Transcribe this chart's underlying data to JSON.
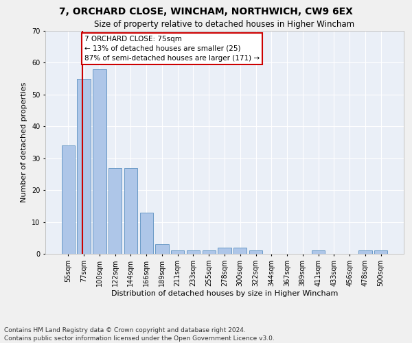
{
  "title1": "7, ORCHARD CLOSE, WINCHAM, NORTHWICH, CW9 6EX",
  "title2": "Size of property relative to detached houses in Higher Wincham",
  "xlabel": "Distribution of detached houses by size in Higher Wincham",
  "ylabel": "Number of detached properties",
  "footnote1": "Contains HM Land Registry data © Crown copyright and database right 2024.",
  "footnote2": "Contains public sector information licensed under the Open Government Licence v3.0.",
  "bar_labels": [
    "55sqm",
    "77sqm",
    "100sqm",
    "122sqm",
    "144sqm",
    "166sqm",
    "189sqm",
    "211sqm",
    "233sqm",
    "255sqm",
    "278sqm",
    "300sqm",
    "322sqm",
    "344sqm",
    "367sqm",
    "389sqm",
    "411sqm",
    "433sqm",
    "456sqm",
    "478sqm",
    "500sqm"
  ],
  "bar_values": [
    34,
    55,
    58,
    27,
    27,
    13,
    3,
    1,
    1,
    1,
    2,
    2,
    1,
    0,
    0,
    0,
    1,
    0,
    0,
    1,
    1
  ],
  "bar_color": "#aec6e8",
  "bar_edge_color": "#5a8fc0",
  "annotation_text_line1": "7 ORCHARD CLOSE: 75sqm",
  "annotation_text_line2": "← 13% of detached houses are smaller (25)",
  "annotation_text_line3": "87% of semi-detached houses are larger (171) →",
  "annotation_box_color": "#ffffff",
  "annotation_box_edge": "#cc0000",
  "vline_color": "#cc0000",
  "ylim": [
    0,
    70
  ],
  "yticks": [
    0,
    10,
    20,
    30,
    40,
    50,
    60,
    70
  ],
  "bg_color": "#eaeff7",
  "grid_color": "#ffffff",
  "fig_bg_color": "#f0f0f0",
  "title1_fontsize": 10,
  "title2_fontsize": 8.5,
  "xlabel_fontsize": 8,
  "ylabel_fontsize": 8,
  "tick_fontsize": 7,
  "footnote_fontsize": 6.5,
  "annotation_fontsize": 7.5
}
